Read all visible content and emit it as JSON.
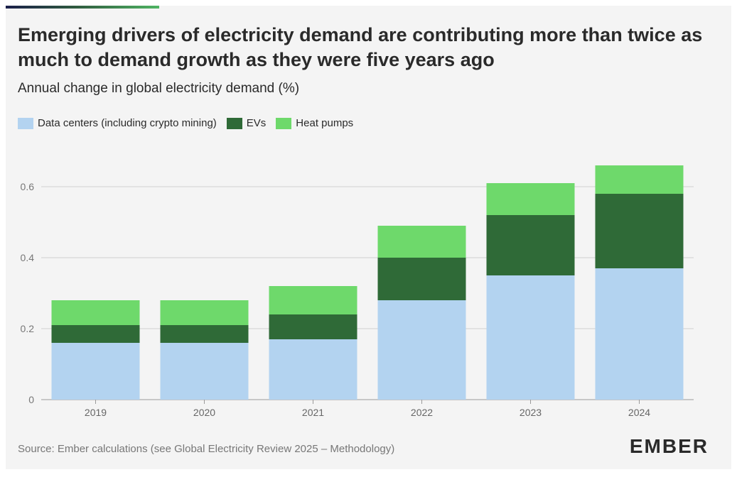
{
  "header": {
    "title": "Emerging drivers of electricity demand are contributing more than twice as much to demand growth as they were five years ago",
    "subtitle": "Annual change in global electricity demand (%)"
  },
  "legend": [
    {
      "label": "Data centers (including crypto mining)",
      "color": "#b3d3f0"
    },
    {
      "label": "EVs",
      "color": "#2f6a37"
    },
    {
      "label": "Heat pumps",
      "color": "#6ed96b"
    }
  ],
  "footer": {
    "source": "Source: Ember calculations (see Global Electricity Review 2025 – Methodology)",
    "logo": "EMBER"
  },
  "chart_data": {
    "type": "bar",
    "stacked": true,
    "title": "Emerging drivers of electricity demand are contributing more than twice as much to demand growth as they were five years ago",
    "subtitle": "Annual change in global electricity demand (%)",
    "categories": [
      "2019",
      "2020",
      "2021",
      "2022",
      "2023",
      "2024"
    ],
    "series": [
      {
        "name": "Data centers (including crypto mining)",
        "color": "#b3d3f0",
        "values": [
          0.16,
          0.16,
          0.17,
          0.28,
          0.35,
          0.37
        ]
      },
      {
        "name": "EVs",
        "color": "#2f6a37",
        "values": [
          0.05,
          0.05,
          0.07,
          0.12,
          0.17,
          0.21
        ]
      },
      {
        "name": "Heat pumps",
        "color": "#6ed96b",
        "values": [
          0.07,
          0.07,
          0.08,
          0.09,
          0.09,
          0.08
        ]
      }
    ],
    "y_ticks": [
      "0",
      "0.2",
      "0.4",
      "0.6"
    ],
    "ylim": [
      0,
      0.7
    ],
    "grid": true,
    "legend_position": "top-left"
  }
}
